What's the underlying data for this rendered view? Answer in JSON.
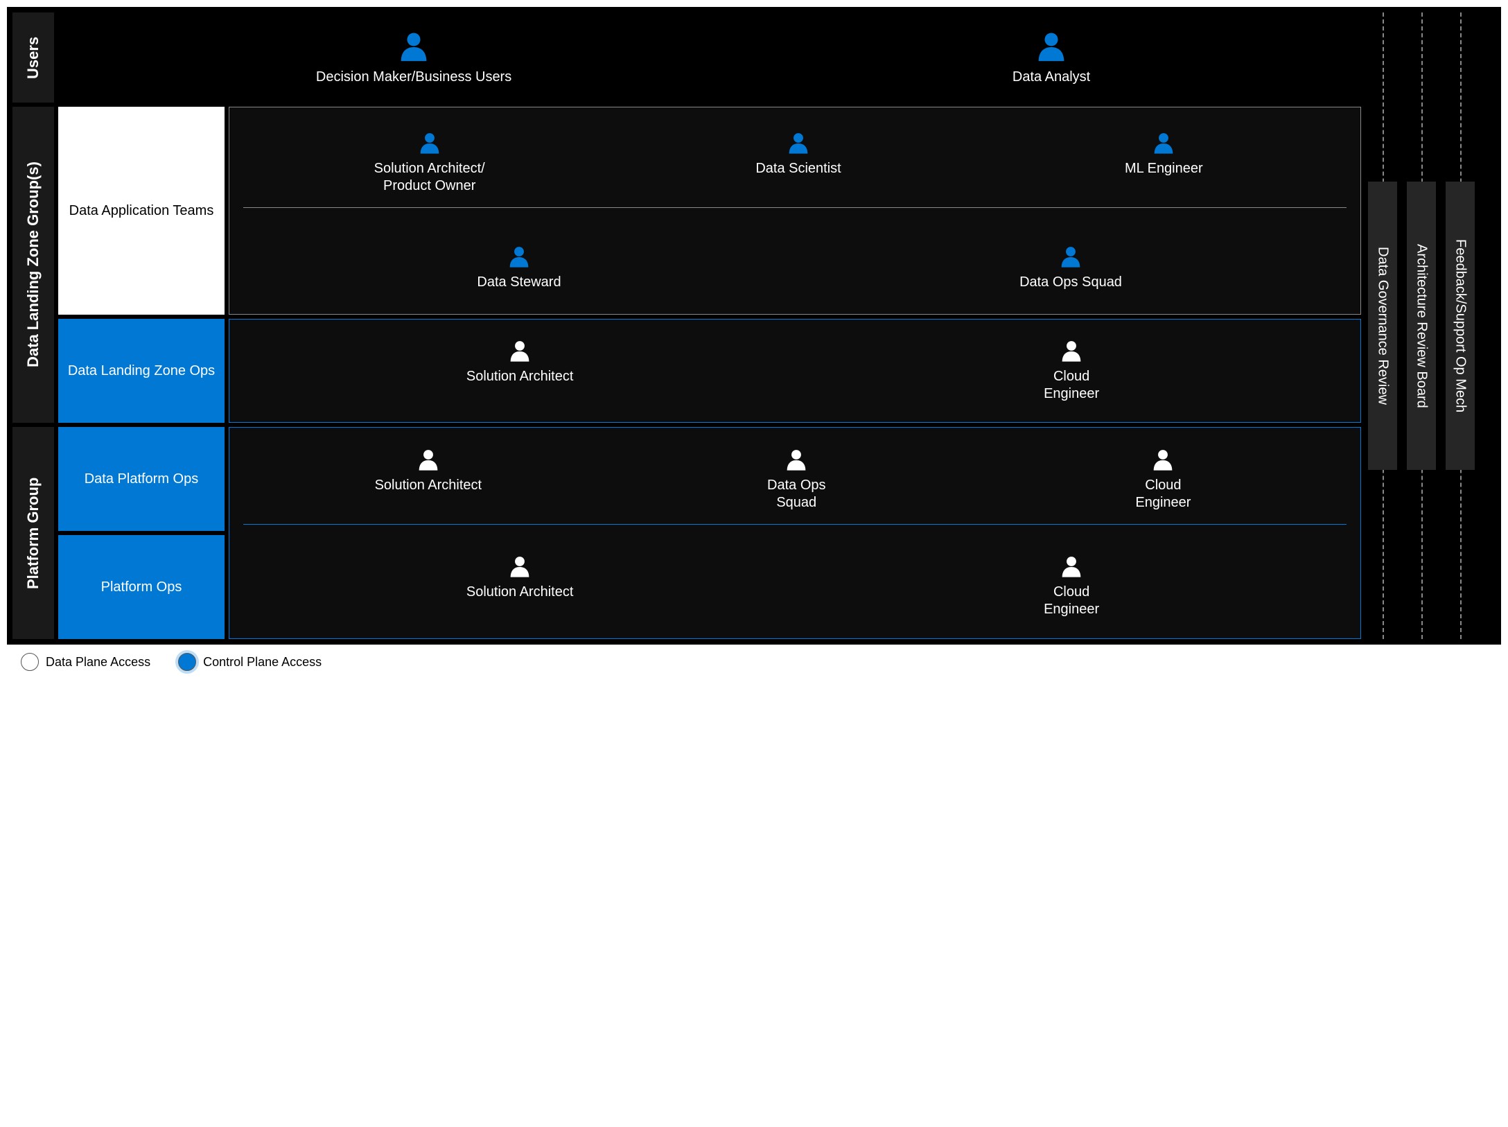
{
  "colors": {
    "background": "#000000",
    "accent_blue": "#0078d4",
    "panel": "#0d0d0d",
    "label_bg": "#1a1a1a",
    "bar_bg": "#262626",
    "border_gray": "#888888",
    "text_white": "#ffffff",
    "text_black": "#000000"
  },
  "layout": {
    "grid_columns": "60px 240px 1fr 50px 50px 50px 20px",
    "grid_rows": "130px 300px 150px 150px 150px",
    "person_icon_large": 44,
    "person_icon_small": 32,
    "label_fontsize": 22,
    "role_fontsize": 20
  },
  "sections": {
    "users": {
      "label": "Users"
    },
    "dlzg": {
      "label": "Data Landing Zone Group(s)"
    },
    "platform": {
      "label": "Platform Group"
    }
  },
  "teams": {
    "data_app": "Data Application Teams",
    "dlz_ops": "Data Landing Zone Ops",
    "data_plat_ops": "Data Platform Ops",
    "plat_ops": "Platform Ops"
  },
  "roles": {
    "users_row": [
      {
        "label": "Decision Maker/Business Users",
        "icon_color": "#0078d4",
        "size": "large"
      },
      {
        "label": "Data Analyst",
        "icon_color": "#0078d4",
        "size": "large"
      }
    ],
    "data_app_row1": [
      {
        "label": "Solution Architect/\nProduct Owner",
        "icon_color": "#0078d4"
      },
      {
        "label": "Data Scientist",
        "icon_color": "#0078d4"
      },
      {
        "label": "ML Engineer",
        "icon_color": "#0078d4"
      }
    ],
    "data_app_row2": [
      {
        "label": "Data Steward",
        "icon_color": "#0078d4"
      },
      {
        "label": "Data Ops Squad",
        "icon_color": "#0078d4"
      }
    ],
    "dlz_ops_row": [
      {
        "label": "Solution Architect",
        "icon_color": "#ffffff"
      },
      {
        "label": "Cloud\nEngineer",
        "icon_color": "#ffffff"
      }
    ],
    "data_plat_ops_row": [
      {
        "label": "Solution Architect",
        "icon_color": "#ffffff"
      },
      {
        "label": "Data Ops\nSquad",
        "icon_color": "#ffffff"
      },
      {
        "label": "Cloud\nEngineer",
        "icon_color": "#ffffff"
      }
    ],
    "plat_ops_row": [
      {
        "label": "Solution Architect",
        "icon_color": "#ffffff"
      },
      {
        "label": "Cloud\nEngineer",
        "icon_color": "#ffffff"
      }
    ]
  },
  "review_bars": [
    "Data Governance Review",
    "Architecture Review Board",
    "Feedback/Support Op Mech"
  ],
  "legend": {
    "data_plane": "Data Plane Access",
    "control_plane": "Control Plane Access"
  }
}
